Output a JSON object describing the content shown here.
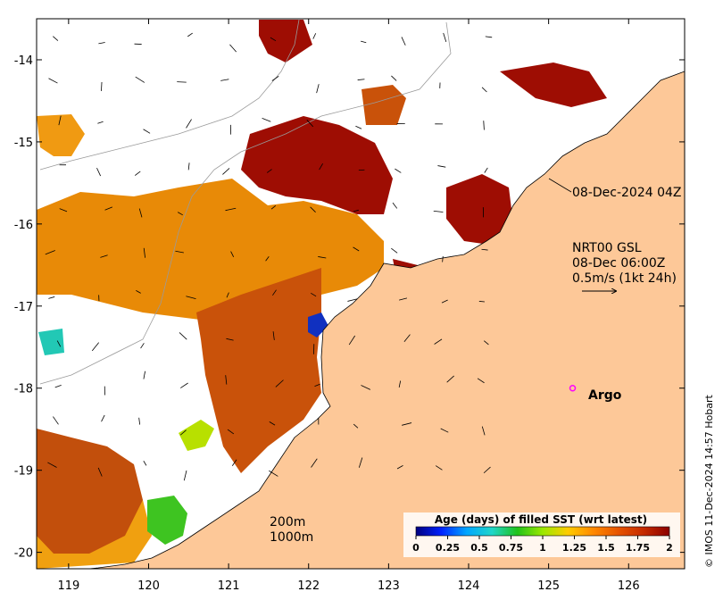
{
  "map": {
    "x_ticks": [
      "119",
      "120",
      "121",
      "122",
      "123",
      "124",
      "125",
      "126"
    ],
    "y_ticks": [
      "-14",
      "-15",
      "-16",
      "-17",
      "-18",
      "-19",
      "-20"
    ],
    "lon_range": [
      118.6,
      126.7
    ],
    "lat_range": [
      -13.5,
      -20.2
    ],
    "colors": {
      "land": "#fdc898",
      "background": "#ffffff",
      "bathymetry": "#9a9a9a",
      "argo": "#ff00ff"
    }
  },
  "annotations": {
    "timestamp": "08-Dec-2024 04Z",
    "current_title": "NRT00 GSL",
    "current_date": "08-Dec 06:00Z",
    "current_scale": "0.5m/s (1kt 24h)",
    "argo_label": "Argo",
    "contour_200": "200m",
    "contour_1000": "1000m"
  },
  "colorbar": {
    "title": "Age (days) of filled SST (wrt latest)",
    "labels": [
      "0",
      "0.25",
      "0.5",
      "0.75",
      "1",
      "1.25",
      "1.5",
      "1.75",
      "2"
    ],
    "range": [
      0,
      2
    ],
    "colors": [
      "#00007f",
      "#0022ff",
      "#00a6ff",
      "#1fd6c9",
      "#21c21a",
      "#9be800",
      "#ffcc00",
      "#ff8800",
      "#e65300",
      "#c42a00",
      "#8b0000"
    ]
  },
  "credit": "© IMOS 11-Dec-2024 14:57 Hobart",
  "chart_data": {
    "type": "heatmap",
    "xlabel": "",
    "ylabel": "",
    "x_ticks": [
      119,
      120,
      121,
      122,
      123,
      124,
      125,
      126
    ],
    "y_ticks": [
      -14,
      -15,
      -16,
      -17,
      -18,
      -19,
      -20
    ],
    "argo_float": {
      "lon": 125.3,
      "lat": -18.0
    }
  }
}
